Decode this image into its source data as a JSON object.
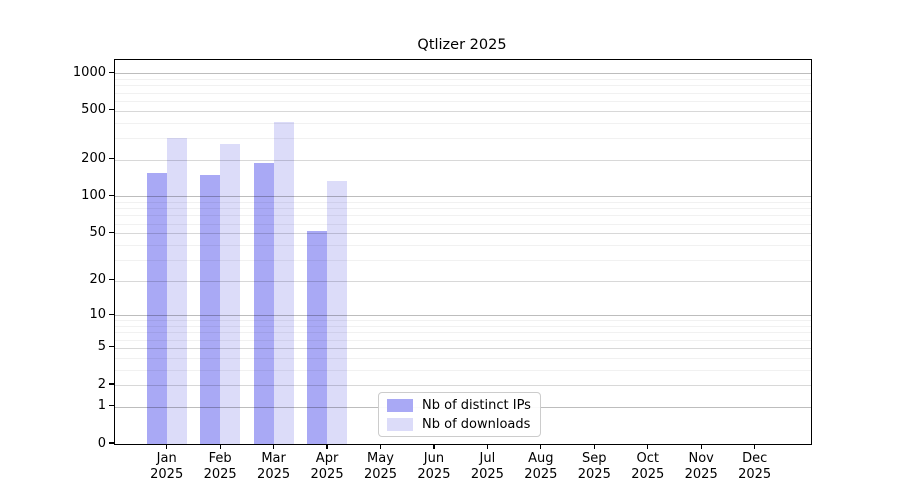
{
  "chart_data": {
    "type": "bar",
    "title": "Qtlizer 2025",
    "categories": [
      "Jan",
      "Feb",
      "Mar",
      "Apr",
      "May",
      "Jun",
      "Jul",
      "Aug",
      "Sep",
      "Oct",
      "Nov",
      "Dec"
    ],
    "category_year": "2025",
    "series": [
      {
        "name": "Nb of distinct IPs",
        "color": "#a9a9f5",
        "values": [
          155,
          149,
          188,
          52,
          0,
          0,
          0,
          0,
          0,
          0,
          0,
          0
        ]
      },
      {
        "name": "Nb of downloads",
        "color": "#dcdcf9",
        "values": [
          300,
          267,
          406,
          133,
          0,
          0,
          0,
          0,
          0,
          0,
          0,
          0
        ]
      }
    ],
    "yscale": "log1p",
    "yticks": [
      0,
      1,
      2,
      5,
      10,
      20,
      50,
      100,
      200,
      500,
      1000
    ],
    "major_gridlines": [
      1,
      10,
      100,
      1000
    ],
    "minor_gridline_decades": [
      1,
      10,
      100
    ],
    "ylim": [
      0,
      1285
    ],
    "xlabel": "",
    "ylabel": "",
    "grid": true,
    "legend": {
      "position": "inside-bottom-center"
    }
  }
}
